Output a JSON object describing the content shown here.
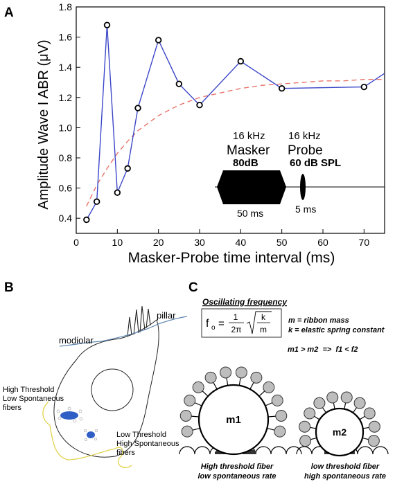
{
  "panels": {
    "a": "A",
    "b": "B",
    "c": "C"
  },
  "chart_data": {
    "type": "line",
    "xlabel": "Masker-Probe time interval (ms)",
    "ylabel": "Amplitude Wave I ABR (μV)",
    "xlim": [
      0,
      75
    ],
    "ylim": [
      0.3,
      1.8
    ],
    "xticks": [
      0,
      10,
      20,
      30,
      40,
      50,
      60,
      70
    ],
    "yticks": [
      0.4,
      0.6,
      0.8,
      1.0,
      1.2,
      1.4,
      1.6,
      1.8
    ],
    "ytick_labels": [
      "0.4",
      "0.6",
      "0.8",
      "1.0",
      "1.2",
      "1.4",
      "1.6",
      "1.8"
    ],
    "grid": false,
    "series": [
      {
        "kind": "measured",
        "color": "#3b46c8",
        "x": [
          2.5,
          5,
          7.5,
          10,
          12.5,
          15,
          20,
          25,
          30,
          40,
          50,
          70,
          75
        ],
        "y": [
          0.39,
          0.51,
          1.68,
          0.57,
          0.73,
          1.13,
          1.58,
          1.29,
          1.15,
          1.44,
          1.26,
          1.27,
          1.36
        ],
        "markers": [
          true,
          true,
          true,
          true,
          true,
          true,
          true,
          true,
          true,
          true,
          true,
          true,
          false
        ]
      },
      {
        "kind": "fit",
        "color": "#e8736a",
        "style": "dashed",
        "x": [
          2.5,
          5,
          7.5,
          10,
          12.5,
          15,
          20,
          25,
          30,
          35,
          40,
          45,
          50,
          55,
          60,
          65,
          70,
          75
        ],
        "y": [
          0.48,
          0.62,
          0.73,
          0.83,
          0.91,
          0.98,
          1.08,
          1.15,
          1.2,
          1.23,
          1.26,
          1.28,
          1.29,
          1.3,
          1.31,
          1.31,
          1.32,
          1.32
        ]
      }
    ],
    "inset": {
      "masker_freq": "16 kHz",
      "probe_freq": "16 kHz",
      "masker_label": "Masker",
      "probe_label": "Probe",
      "masker_level": "80dB",
      "probe_level": "60 dB SPL",
      "masker_duration": "50 ms",
      "probe_duration": "5 ms"
    }
  },
  "panel_b": {
    "modiolar": "modiolar",
    "pillar": "pillar",
    "high_threshold": [
      "High Threshold",
      "Low Spontaneous",
      "fibers"
    ],
    "low_threshold": [
      "Low Threshold",
      "High Spontaneous",
      "fibers"
    ]
  },
  "panel_c": {
    "title": "Oscillating frequency",
    "formula_lhs": "f",
    "formula_sub": "o",
    "formula_eq": "=",
    "formula_num": "1",
    "formula_den": "2π",
    "formula_k": "k",
    "formula_m": "m",
    "def_m": "m = ribbon mass",
    "def_k": "k = elastic spring constant",
    "relation": "m1 > m2  =>  f1 < f2",
    "ribbon1": "m1",
    "ribbon2": "m2",
    "caption1": [
      "High threshold fiber",
      "low spontaneous rate"
    ],
    "caption2": [
      "low threshold fiber",
      "high spontaneous rate"
    ]
  }
}
